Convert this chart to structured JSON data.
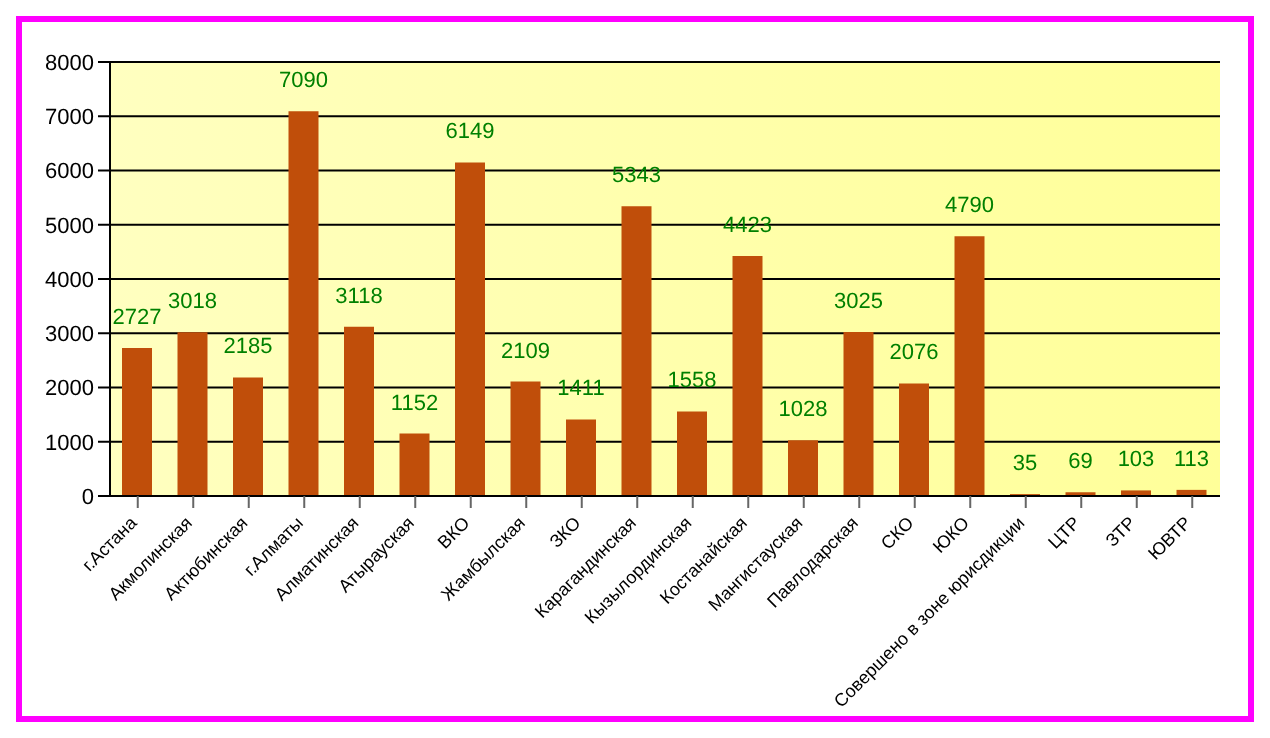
{
  "chart_data": {
    "type": "bar",
    "categories": [
      "г.Астана",
      "Акмолинская",
      "Актюбинская",
      "г.Алматы",
      "Алматинская",
      "Атырауская",
      "ВКО",
      "Жамбылская",
      "ЗКО",
      "Карагандинская",
      "Кызылординская",
      "Костанайская",
      "Мангистауская",
      "Павлодарская",
      "СКО",
      "ЮКО",
      "Совершено в зоне юрисдикции",
      "ЦТР",
      "ЗТР",
      "ЮВТР"
    ],
    "values": [
      2727,
      3018,
      2185,
      7090,
      3118,
      1152,
      6149,
      2109,
      1411,
      5343,
      1558,
      4423,
      1028,
      3025,
      2076,
      4790,
      35,
      69,
      103,
      113
    ],
    "color": "#c04e0a",
    "ylim": [
      0,
      8000
    ],
    "yticks": [
      0,
      1000,
      2000,
      3000,
      4000,
      5000,
      6000,
      7000,
      8000
    ],
    "grid": "y",
    "data_labels": true
  }
}
